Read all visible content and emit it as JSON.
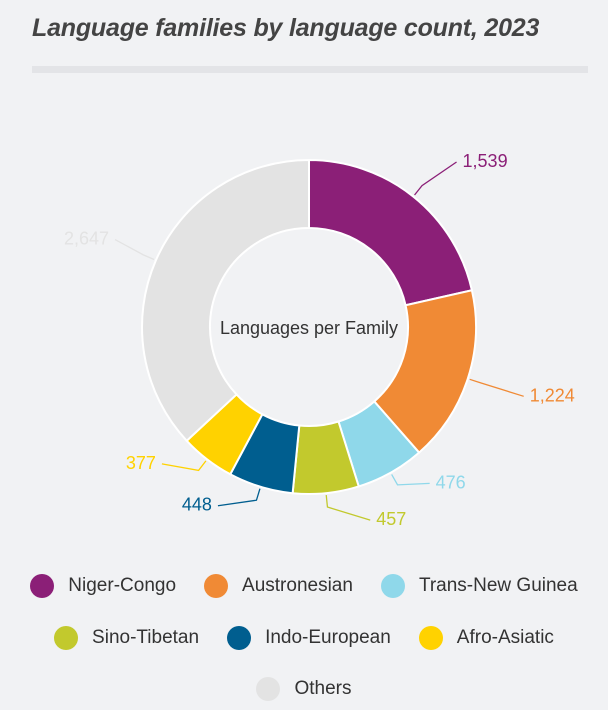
{
  "title": "Language families by language count, 2023",
  "chart_data": {
    "type": "pie",
    "center_label": "Languages per Family",
    "slices": [
      {
        "name": "Niger-Congo",
        "value": 1539,
        "label": "1,539",
        "color": "#8b1f77"
      },
      {
        "name": "Austronesian",
        "value": 1224,
        "label": "1,224",
        "color": "#f08a35"
      },
      {
        "name": "Trans-New Guinea",
        "value": 476,
        "label": "476",
        "color": "#8fd8ea"
      },
      {
        "name": "Sino-Tibetan",
        "value": 457,
        "label": "457",
        "color": "#c2c92d"
      },
      {
        "name": "Indo-European",
        "value": 448,
        "label": "448",
        "color": "#005e8f"
      },
      {
        "name": "Afro-Asiatic",
        "value": 377,
        "label": "377",
        "color": "#ffd200"
      },
      {
        "name": "Others",
        "value": 2647,
        "label": "2,647",
        "color": "#e3e3e3"
      }
    ]
  },
  "legend": {
    "rows": [
      [
        "Niger-Congo",
        "Austronesian",
        "Trans-New Guinea"
      ],
      [
        "Sino-Tibetan",
        "Indo-European",
        "Afro-Asiatic"
      ],
      [
        "Others"
      ]
    ]
  }
}
